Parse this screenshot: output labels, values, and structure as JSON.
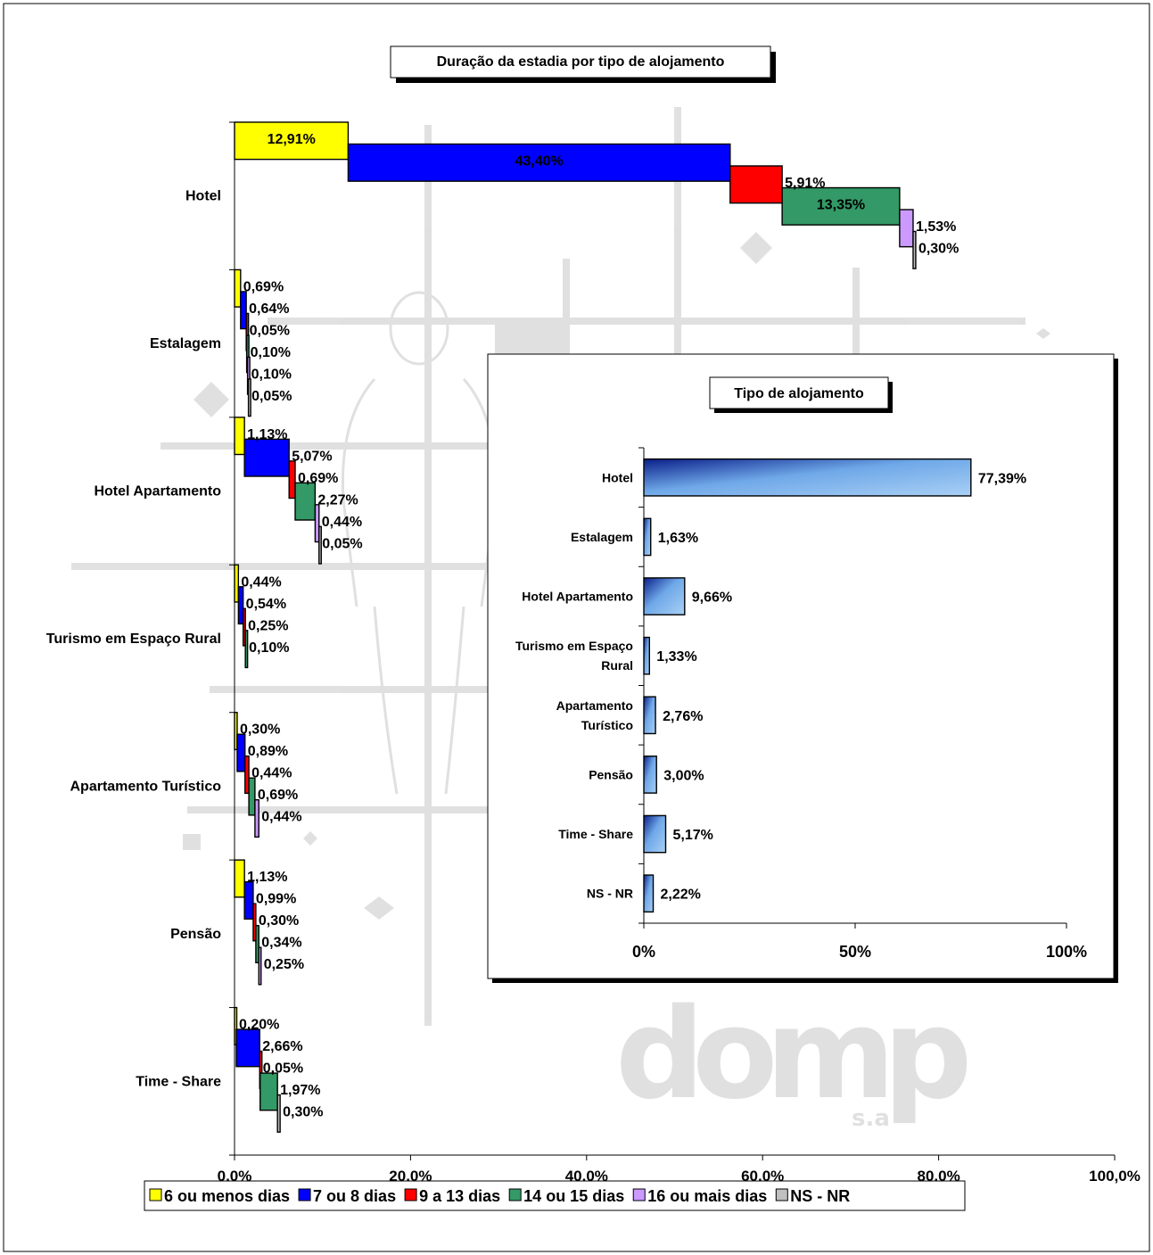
{
  "chart_data": [
    {
      "type": "bar",
      "orientation": "horizontal",
      "stacked": "waterfall",
      "title": "Duração da estadia por tipo de alojamento",
      "categories": [
        "Hotel",
        "Estalagem",
        "Hotel Apartamento",
        "Turismo em Espaço Rural",
        "Apartamento Turístico",
        "Pensão",
        "Time - Share"
      ],
      "series": [
        {
          "name": "6 ou menos dias",
          "color": "#ffff00",
          "values": [
            12.91,
            0.69,
            1.13,
            0.44,
            0.3,
            1.13,
            0.2
          ]
        },
        {
          "name": "7 ou 8 dias",
          "color": "#0000ff",
          "values": [
            43.4,
            0.64,
            5.07,
            0.54,
            0.89,
            0.99,
            2.66
          ]
        },
        {
          "name": "9 a 13 dias",
          "color": "#ff0000",
          "values": [
            5.91,
            0.05,
            0.69,
            0.25,
            0.44,
            0.3,
            0.05
          ]
        },
        {
          "name": "14 ou 15 dias",
          "color": "#339966",
          "values": [
            13.35,
            0.1,
            2.27,
            0.1,
            0.69,
            0.34,
            1.97
          ]
        },
        {
          "name": "16 ou mais dias",
          "color": "#cc99ff",
          "values": [
            1.53,
            0.1,
            0.44,
            null,
            0.44,
            0.25,
            null
          ]
        },
        {
          "name": "NS - NR",
          "color": "#c0c0c0",
          "values": [
            0.3,
            0.05,
            0.05,
            null,
            null,
            null,
            0.3
          ]
        }
      ],
      "data_labels": [
        [
          "12,91%",
          "43,40%",
          "5,91%",
          "13,35%",
          "1,53%",
          "0,30%"
        ],
        [
          "0,69%",
          "0,64%",
          "0,05%",
          "0,10%",
          "0,10%",
          "0,05%"
        ],
        [
          "1,13%",
          "5,07%",
          "0,69%",
          "2,27%",
          "0,44%",
          "0,05%"
        ],
        [
          "0,44%",
          "0,54%",
          "0,25%",
          "0,10%",
          "",
          ""
        ],
        [
          "0,30%",
          "0,89%",
          "0,44%",
          "0,69%",
          "0,44%",
          ""
        ],
        [
          "1,13%",
          "0,99%",
          "0,30%",
          "0,34%",
          "0,25%",
          ""
        ],
        [
          "0,20%",
          "2,66%",
          "0,05%",
          "1,97%",
          "",
          "0,30%"
        ]
      ],
      "xlim": [
        0,
        100
      ],
      "xticks": [
        "0,0%",
        "20,0%",
        "40,0%",
        "60,0%",
        "80,0%",
        "100,0%"
      ],
      "grid": false,
      "legend": "bottom"
    },
    {
      "type": "bar",
      "orientation": "horizontal",
      "title": "Tipo de alojamento",
      "categories": [
        "Hotel",
        "Estalagem",
        "Hotel Apartamento",
        "Turismo em Espaço Rural",
        "Apartamento Turístico",
        "Pensão",
        "Time - Share",
        "NS - NR"
      ],
      "category_lines": [
        [
          "Hotel"
        ],
        [
          "Estalagem"
        ],
        [
          "Hotel Apartamento"
        ],
        [
          "Turismo em Espaço",
          "Rural"
        ],
        [
          "Apartamento",
          "Turístico"
        ],
        [
          "Pensão"
        ],
        [
          "Time - Share"
        ],
        [
          "NS - NR"
        ]
      ],
      "values": [
        77.39,
        1.63,
        9.66,
        1.33,
        2.76,
        3.0,
        5.17,
        2.22
      ],
      "labels": [
        "77,39%",
        "1,63%",
        "9,66%",
        "1,33%",
        "2,76%",
        "3,00%",
        "5,17%",
        "2,22%"
      ],
      "xlim": [
        0,
        100
      ],
      "xticks": [
        "0%",
        "50%",
        "100%"
      ],
      "grid": false,
      "legend": "none",
      "placement": "inset"
    }
  ]
}
